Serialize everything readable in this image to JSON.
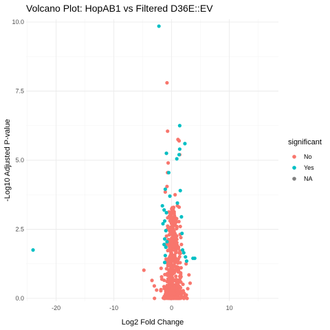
{
  "chart_data": {
    "type": "scatter",
    "title": "Volcano Plot: HopAB1 vs Filtered D36E::EV",
    "xlabel": "Log2 Fold Change",
    "ylabel": "-Log10 Adjusted P-value",
    "xlim": [
      -25.2,
      18.5
    ],
    "ylim": [
      -0.1,
      10.1
    ],
    "x_ticks": [
      -20,
      -10,
      0,
      10
    ],
    "x_tick_labels": [
      "-20",
      "-10",
      "0",
      "10"
    ],
    "y_ticks": [
      0,
      2.5,
      5,
      7.5,
      10
    ],
    "y_tick_labels": [
      "0.0",
      "2.5",
      "5.0",
      "7.5",
      "10.0"
    ],
    "grid": true,
    "legend": {
      "title": "significant",
      "position": "right",
      "entries": [
        {
          "label": "No",
          "color": "#F8766D"
        },
        {
          "label": "Yes",
          "color": "#00BFC4"
        },
        {
          "label": "NA",
          "color": "#7f7f7f"
        }
      ]
    },
    "series": [
      {
        "name": "No",
        "color": "#F8766D",
        "points": [
          [
            -0.8,
            7.8
          ],
          [
            -0.7,
            6.05
          ],
          [
            -0.9,
            5.25
          ],
          [
            -0.6,
            4.9
          ],
          [
            -0.7,
            4.55
          ],
          [
            -0.8,
            4.05
          ],
          [
            1.1,
            5.75
          ],
          [
            1.3,
            5.7
          ],
          [
            1.4,
            5.2
          ],
          [
            -1.1,
            3.85
          ],
          [
            0.6,
            3.75
          ],
          [
            1.0,
            3.35
          ],
          [
            1.3,
            3.3
          ],
          [
            1.5,
            2.6
          ],
          [
            0.9,
            2.55
          ],
          [
            0.3,
            2.4
          ],
          [
            -0.4,
            2.3
          ],
          [
            1.6,
            2.2
          ],
          [
            1.7,
            1.95
          ],
          [
            -4.8,
            1.02
          ],
          [
            -3.4,
            0.65
          ],
          [
            -3.0,
            0.45
          ],
          [
            3.0,
            0.85
          ],
          [
            3.2,
            0.55
          ],
          [
            2.8,
            0.35
          ],
          [
            -2.6,
            0.3
          ],
          [
            2.5,
            1.25
          ]
        ],
        "core_cloud": {
          "count": 520,
          "x_center": 0.2,
          "x_spread": 1.15,
          "y_max": 3.3
        }
      },
      {
        "name": "Yes",
        "color": "#00BFC4",
        "points": [
          [
            -2.2,
            9.85
          ],
          [
            1.4,
            6.25
          ],
          [
            2.3,
            5.6
          ],
          [
            1.4,
            5.4
          ],
          [
            -0.9,
            5.25
          ],
          [
            1.3,
            5.2
          ],
          [
            0.9,
            5.05
          ],
          [
            -0.5,
            4.55
          ],
          [
            -1.1,
            3.95
          ],
          [
            1.5,
            3.9
          ],
          [
            -0.3,
            3.7
          ],
          [
            1.0,
            3.45
          ],
          [
            -1.6,
            3.35
          ],
          [
            -1.3,
            3.2
          ],
          [
            -0.9,
            3.1
          ],
          [
            1.7,
            2.95
          ],
          [
            -1.2,
            2.8
          ],
          [
            -1.5,
            2.7
          ],
          [
            -1.0,
            2.45
          ],
          [
            1.8,
            2.35
          ],
          [
            -1.2,
            2.15
          ],
          [
            -0.8,
            2.05
          ],
          [
            -1.3,
            1.95
          ],
          [
            -1.0,
            1.85
          ],
          [
            1.9,
            1.75
          ],
          [
            2.1,
            1.65
          ],
          [
            -1.1,
            1.55
          ],
          [
            2.4,
            1.5
          ],
          [
            3.7,
            1.45
          ],
          [
            4.0,
            1.45
          ],
          [
            2.6,
            1.35
          ],
          [
            -1.2,
            1.3
          ],
          [
            -24.0,
            1.75
          ]
        ]
      }
    ]
  }
}
